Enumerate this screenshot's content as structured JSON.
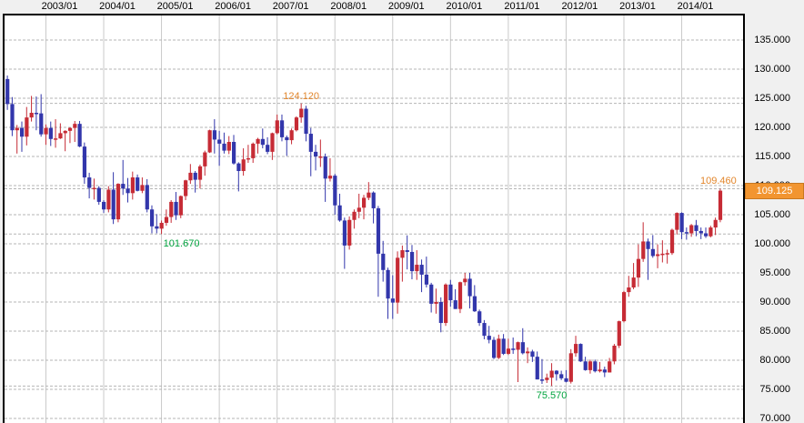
{
  "chart_data": {
    "type": "candlestick",
    "period": "monthly",
    "x_axis": {
      "position": "top",
      "labels": [
        "2003/01",
        "2004/01",
        "2005/01",
        "2006/01",
        "2007/01",
        "2008/01",
        "2009/01",
        "2010/01",
        "2011/01",
        "2012/01",
        "2013/01",
        "2014/01"
      ]
    },
    "y_axis": {
      "position": "right",
      "tick_labels": [
        "135.000",
        "130.000",
        "125.000",
        "120.000",
        "115.000",
        "110.000",
        "105.000",
        "100.000",
        "95.000",
        "90.000",
        "85.000",
        "80.000",
        "75.000",
        "70.000"
      ],
      "tick_values": [
        135,
        130,
        125,
        120,
        115,
        110,
        105,
        100,
        95,
        90,
        85,
        80,
        75,
        70
      ],
      "ylim": [
        70,
        135
      ],
      "grid": "dashed-horizontal, solid-vertical-on-january"
    },
    "colors": {
      "bull_candle": "#c62b35",
      "bear_candle": "#3236ab",
      "vertical_grid": "#c9c9c9",
      "horizontal_grid": "#b5b5b5",
      "plot_background": "#ffffff",
      "outer_background": "#f0f0f0",
      "border": "#000000",
      "high_annotation": "#e2862c",
      "low_annotation": "#00a33e"
    },
    "annotations": [
      {
        "label": "124.120",
        "value": 124.12,
        "kind": "high",
        "month": "2007/06",
        "dx": 0,
        "color": "#e2862c"
      },
      {
        "label": "101.670",
        "value": 101.67,
        "kind": "low",
        "month": "2005/01",
        "dx": 22,
        "color": "#00a33e"
      },
      {
        "label": "75.570",
        "value": 75.57,
        "kind": "low",
        "month": "2011/10",
        "dx": 0,
        "color": "#00a33e"
      },
      {
        "label": "109.460",
        "value": 109.46,
        "kind": "high",
        "month": "2014/09",
        "dx": -2,
        "color": "#e2862c"
      }
    ],
    "last_price_badge": {
      "label": "109.125",
      "value": 109.125,
      "background": "#f29530",
      "border_color": "#c87820",
      "text_color": "#ffffff"
    },
    "candles": [
      [
        "2002/05",
        128.3,
        128.9,
        123.0,
        124.0
      ],
      [
        "2002/06",
        124.0,
        125.2,
        118.5,
        119.5
      ],
      [
        "2002/07",
        119.5,
        120.4,
        115.5,
        119.9
      ],
      [
        "2002/08",
        119.9,
        121.0,
        115.8,
        118.4
      ],
      [
        "2002/09",
        118.4,
        123.5,
        116.9,
        121.7
      ],
      [
        "2002/10",
        121.7,
        125.4,
        121.0,
        122.5
      ],
      [
        "2002/11",
        122.5,
        125.3,
        119.5,
        122.4
      ],
      [
        "2002/12",
        122.4,
        125.7,
        118.4,
        118.8
      ],
      [
        "2003/01",
        118.8,
        120.5,
        117.0,
        119.9
      ],
      [
        "2003/02",
        119.9,
        121.0,
        116.8,
        118.0
      ],
      [
        "2003/03",
        118.0,
        121.4,
        116.5,
        118.1
      ],
      [
        "2003/04",
        118.1,
        120.7,
        118.0,
        119.0
      ],
      [
        "2003/05",
        119.0,
        119.5,
        115.9,
        119.4
      ],
      [
        "2003/06",
        119.4,
        120.0,
        117.3,
        119.9
      ],
      [
        "2003/07",
        119.9,
        121.1,
        117.5,
        120.6
      ],
      [
        "2003/08",
        120.6,
        121.1,
        116.6,
        116.7
      ],
      [
        "2003/09",
        116.7,
        117.4,
        110.3,
        111.4
      ],
      [
        "2003/10",
        111.4,
        112.2,
        107.8,
        109.6
      ],
      [
        "2003/11",
        109.6,
        111.2,
        107.6,
        109.6
      ],
      [
        "2003/12",
        109.6,
        109.9,
        106.7,
        107.2
      ],
      [
        "2004/01",
        107.2,
        107.5,
        105.3,
        105.9
      ],
      [
        "2004/02",
        105.9,
        109.9,
        105.4,
        109.3
      ],
      [
        "2004/03",
        109.3,
        112.3,
        103.4,
        104.2
      ],
      [
        "2004/04",
        104.2,
        110.4,
        103.7,
        110.3
      ],
      [
        "2004/05",
        110.3,
        114.4,
        108.4,
        109.5
      ],
      [
        "2004/06",
        109.5,
        111.3,
        107.1,
        108.7
      ],
      [
        "2004/07",
        108.7,
        112.4,
        107.6,
        111.4
      ],
      [
        "2004/08",
        111.4,
        111.9,
        109.0,
        109.1
      ],
      [
        "2004/09",
        109.1,
        111.4,
        108.7,
        110.1
      ],
      [
        "2004/10",
        110.1,
        111.1,
        105.4,
        105.9
      ],
      [
        "2004/11",
        105.9,
        106.6,
        101.8,
        103.0
      ],
      [
        "2004/12",
        103.0,
        105.1,
        101.8,
        102.6
      ],
      [
        "2005/01",
        102.6,
        104.0,
        101.67,
        103.6
      ],
      [
        "2005/02",
        103.6,
        105.9,
        103.1,
        104.6
      ],
      [
        "2005/03",
        104.6,
        107.5,
        103.6,
        107.2
      ],
      [
        "2005/04",
        107.2,
        108.9,
        104.1,
        104.9
      ],
      [
        "2005/05",
        104.9,
        108.3,
        104.4,
        108.2
      ],
      [
        "2005/06",
        108.2,
        111.0,
        107.5,
        110.9
      ],
      [
        "2005/07",
        110.9,
        113.7,
        110.3,
        112.2
      ],
      [
        "2005/08",
        112.2,
        112.5,
        108.8,
        111.0
      ],
      [
        "2005/09",
        111.0,
        113.6,
        109.5,
        113.3
      ],
      [
        "2005/10",
        113.3,
        116.0,
        111.7,
        115.7
      ],
      [
        "2005/11",
        115.7,
        119.6,
        115.6,
        119.5
      ],
      [
        "2005/12",
        119.5,
        121.4,
        115.5,
        117.9
      ],
      [
        "2006/01",
        117.9,
        119.4,
        113.4,
        117.2
      ],
      [
        "2006/02",
        117.2,
        119.1,
        115.5,
        116.0
      ],
      [
        "2006/03",
        116.0,
        118.5,
        115.4,
        117.5
      ],
      [
        "2006/04",
        117.5,
        118.7,
        113.6,
        113.8
      ],
      [
        "2006/05",
        113.8,
        114.0,
        109.0,
        112.5
      ],
      [
        "2006/06",
        112.5,
        116.4,
        111.7,
        114.5
      ],
      [
        "2006/07",
        114.5,
        117.0,
        113.9,
        114.7
      ],
      [
        "2006/08",
        114.7,
        117.4,
        113.9,
        117.2
      ],
      [
        "2006/09",
        117.2,
        118.2,
        115.5,
        118.0
      ],
      [
        "2006/10",
        118.0,
        119.8,
        116.4,
        117.0
      ],
      [
        "2006/11",
        117.0,
        118.3,
        115.4,
        115.8
      ],
      [
        "2006/12",
        115.8,
        119.1,
        114.4,
        119.0
      ],
      [
        "2007/01",
        119.0,
        122.2,
        118.8,
        121.2
      ],
      [
        "2007/02",
        121.2,
        122.2,
        117.6,
        118.3
      ],
      [
        "2007/03",
        118.3,
        118.6,
        115.1,
        117.8
      ],
      [
        "2007/04",
        117.8,
        119.8,
        117.1,
        119.5
      ],
      [
        "2007/05",
        119.5,
        121.9,
        119.3,
        121.7
      ],
      [
        "2007/06",
        121.7,
        124.12,
        120.8,
        123.2
      ],
      [
        "2007/07",
        123.2,
        123.7,
        117.6,
        118.9
      ],
      [
        "2007/08",
        118.9,
        119.9,
        111.6,
        115.8
      ],
      [
        "2007/09",
        115.8,
        117.0,
        112.6,
        115.0
      ],
      [
        "2007/10",
        115.0,
        117.9,
        113.2,
        115.0
      ],
      [
        "2007/11",
        115.0,
        115.5,
        107.2,
        111.2
      ],
      [
        "2007/12",
        111.2,
        114.7,
        110.7,
        111.7
      ],
      [
        "2008/01",
        111.7,
        112.0,
        105.0,
        106.6
      ],
      [
        "2008/02",
        106.6,
        108.6,
        103.8,
        104.0
      ],
      [
        "2008/03",
        104.0,
        104.5,
        95.7,
        99.7
      ],
      [
        "2008/04",
        99.7,
        104.7,
        99.0,
        104.1
      ],
      [
        "2008/05",
        104.1,
        105.9,
        102.6,
        105.5
      ],
      [
        "2008/06",
        105.5,
        108.6,
        104.4,
        106.2
      ],
      [
        "2008/07",
        106.2,
        108.4,
        104.2,
        107.9
      ],
      [
        "2008/08",
        107.9,
        110.6,
        107.5,
        108.8
      ],
      [
        "2008/09",
        108.8,
        109.0,
        103.5,
        106.1
      ],
      [
        "2008/10",
        106.1,
        106.5,
        90.9,
        98.3
      ],
      [
        "2008/11",
        98.3,
        100.5,
        93.5,
        95.5
      ],
      [
        "2008/12",
        95.5,
        95.9,
        87.1,
        90.6
      ],
      [
        "2009/01",
        90.6,
        94.6,
        87.1,
        89.9
      ],
      [
        "2009/02",
        89.9,
        98.7,
        88.0,
        97.6
      ],
      [
        "2009/03",
        97.6,
        99.7,
        93.5,
        98.9
      ],
      [
        "2009/04",
        98.9,
        101.45,
        95.6,
        98.6
      ],
      [
        "2009/05",
        98.6,
        99.8,
        93.9,
        95.3
      ],
      [
        "2009/06",
        95.3,
        98.9,
        93.8,
        96.4
      ],
      [
        "2009/07",
        96.4,
        97.3,
        91.7,
        94.7
      ],
      [
        "2009/08",
        94.7,
        97.8,
        92.5,
        93.0
      ],
      [
        "2009/09",
        93.0,
        93.3,
        88.2,
        89.7
      ],
      [
        "2009/10",
        89.7,
        92.3,
        88.0,
        90.0
      ],
      [
        "2009/11",
        90.0,
        90.8,
        84.8,
        86.4
      ],
      [
        "2009/12",
        86.4,
        93.2,
        85.9,
        93.0
      ],
      [
        "2010/01",
        93.0,
        93.8,
        89.2,
        90.3
      ],
      [
        "2010/02",
        90.3,
        92.2,
        88.8,
        88.8
      ],
      [
        "2010/03",
        88.8,
        93.5,
        88.1,
        93.4
      ],
      [
        "2010/04",
        93.4,
        95.0,
        92.8,
        94.0
      ],
      [
        "2010/05",
        94.0,
        95.0,
        88.9,
        91.0
      ],
      [
        "2010/06",
        91.0,
        92.9,
        88.3,
        88.4
      ],
      [
        "2010/07",
        88.4,
        88.7,
        85.9,
        86.4
      ],
      [
        "2010/08",
        86.4,
        86.9,
        83.6,
        84.2
      ],
      [
        "2010/09",
        84.2,
        85.9,
        82.9,
        83.5
      ],
      [
        "2010/10",
        83.5,
        84.0,
        80.2,
        80.4
      ],
      [
        "2010/11",
        80.4,
        84.4,
        80.2,
        83.7
      ],
      [
        "2010/12",
        83.7,
        84.5,
        80.9,
        81.1
      ],
      [
        "2011/01",
        81.1,
        83.7,
        80.9,
        82.0
      ],
      [
        "2011/02",
        82.0,
        83.9,
        81.1,
        81.8
      ],
      [
        "2011/03",
        81.8,
        83.2,
        76.25,
        83.1
      ],
      [
        "2011/04",
        83.1,
        85.5,
        81.0,
        81.2
      ],
      [
        "2011/05",
        81.2,
        82.2,
        79.5,
        81.5
      ],
      [
        "2011/06",
        81.5,
        81.8,
        79.7,
        80.6
      ],
      [
        "2011/07",
        80.6,
        81.5,
        76.7,
        76.7
      ],
      [
        "2011/08",
        76.7,
        80.2,
        75.94,
        76.6
      ],
      [
        "2011/09",
        76.6,
        77.7,
        76.1,
        77.0
      ],
      [
        "2011/10",
        77.0,
        79.5,
        75.57,
        78.2
      ],
      [
        "2011/11",
        78.2,
        78.3,
        76.5,
        77.6
      ],
      [
        "2011/12",
        77.6,
        78.2,
        76.6,
        76.9
      ],
      [
        "2012/01",
        76.9,
        78.3,
        76.2,
        76.3
      ],
      [
        "2012/02",
        76.3,
        81.9,
        76.0,
        81.2
      ],
      [
        "2012/03",
        81.2,
        84.2,
        80.6,
        82.8
      ],
      [
        "2012/04",
        82.8,
        82.9,
        79.7,
        79.8
      ],
      [
        "2012/05",
        79.8,
        80.6,
        78.2,
        78.3
      ],
      [
        "2012/06",
        78.3,
        80.1,
        77.7,
        79.8
      ],
      [
        "2012/07",
        79.8,
        80.1,
        77.9,
        78.1
      ],
      [
        "2012/08",
        78.1,
        79.7,
        77.9,
        78.4
      ],
      [
        "2012/09",
        78.4,
        78.9,
        77.1,
        77.9
      ],
      [
        "2012/10",
        77.9,
        80.4,
        77.9,
        79.8
      ],
      [
        "2012/11",
        79.8,
        82.8,
        79.3,
        82.5
      ],
      [
        "2012/12",
        82.5,
        86.8,
        82.1,
        86.7
      ],
      [
        "2013/01",
        86.7,
        91.9,
        86.5,
        91.7
      ],
      [
        "2013/02",
        91.7,
        94.5,
        90.9,
        92.5
      ],
      [
        "2013/03",
        92.5,
        96.7,
        92.2,
        94.2
      ],
      [
        "2013/04",
        94.2,
        99.9,
        92.6,
        97.4
      ],
      [
        "2013/05",
        97.4,
        103.7,
        96.9,
        100.4
      ],
      [
        "2013/06",
        100.4,
        100.9,
        93.8,
        99.1
      ],
      [
        "2013/07",
        99.1,
        101.5,
        97.6,
        97.9
      ],
      [
        "2013/08",
        97.9,
        99.9,
        95.8,
        98.2
      ],
      [
        "2013/09",
        98.2,
        100.6,
        96.8,
        98.3
      ],
      [
        "2013/10",
        98.3,
        99.0,
        96.6,
        98.4
      ],
      [
        "2013/11",
        98.4,
        102.6,
        98.1,
        102.4
      ],
      [
        "2013/12",
        102.4,
        105.4,
        101.6,
        105.3
      ],
      [
        "2014/01",
        105.3,
        105.4,
        100.8,
        102.0
      ],
      [
        "2014/02",
        102.0,
        102.8,
        100.7,
        101.8
      ],
      [
        "2014/03",
        101.8,
        103.4,
        101.2,
        103.2
      ],
      [
        "2014/04",
        103.2,
        104.1,
        101.3,
        102.2
      ],
      [
        "2014/05",
        102.2,
        102.8,
        100.8,
        101.8
      ],
      [
        "2014/06",
        101.8,
        102.8,
        101.0,
        101.3
      ],
      [
        "2014/07",
        101.3,
        103.1,
        101.1,
        102.8
      ],
      [
        "2014/08",
        102.8,
        104.5,
        101.5,
        104.1
      ],
      [
        "2014/09",
        104.1,
        109.46,
        103.7,
        109.125
      ]
    ]
  }
}
